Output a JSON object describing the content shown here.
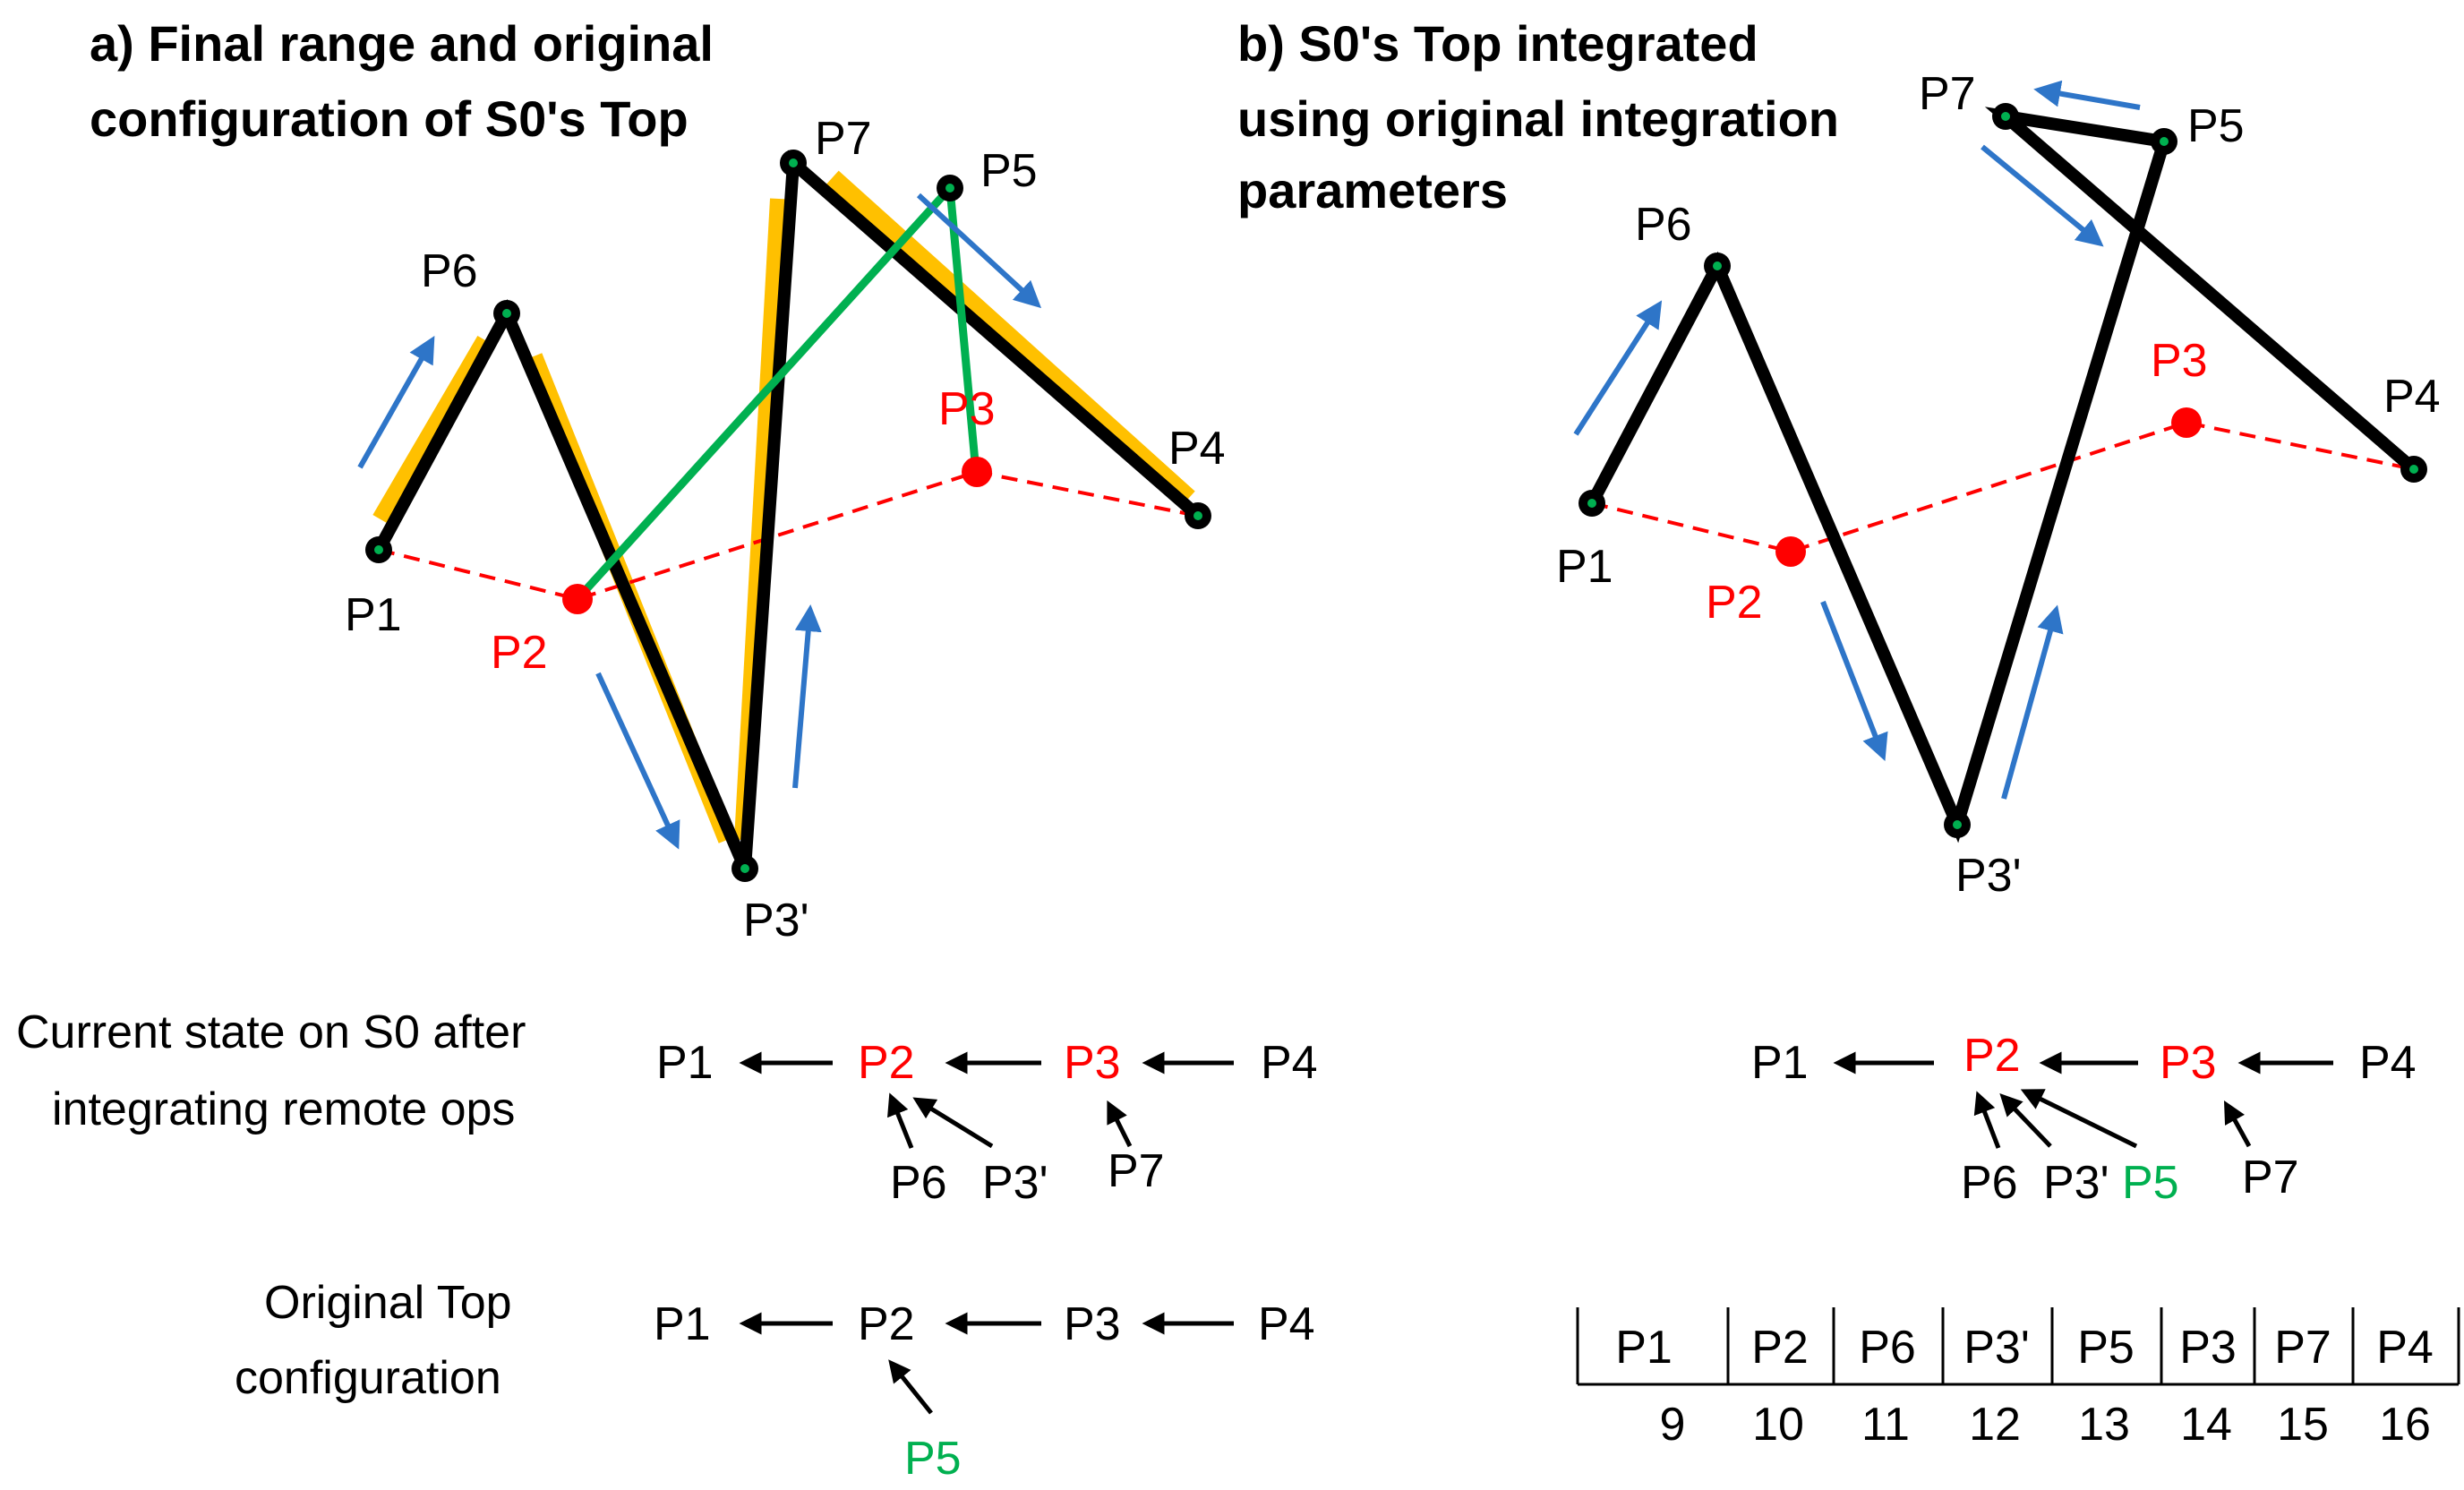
{
  "panel_a": {
    "title_line1": "a) Final range and original",
    "title_line2": "configuration of S0's Top",
    "nodes": {
      "P1": "P1",
      "P2": "P2",
      "P3": "P3",
      "P4": "P4",
      "P5": "P5",
      "P6": "P6",
      "P7": "P7",
      "P3p": "P3'"
    },
    "current_state_caption_line1": "Current state on S0 after",
    "current_state_caption_line2": "integrating remote ops",
    "current_tree": {
      "row": [
        "P1",
        "P2",
        "P3",
        "P4"
      ],
      "children": [
        "P6",
        "P3'",
        "P7"
      ]
    },
    "original_caption_line1": "Original Top",
    "original_caption_line2": "configuration",
    "original_tree": {
      "row": [
        "P1",
        "P2",
        "P3",
        "P4"
      ],
      "children": [
        "P5"
      ]
    }
  },
  "panel_b": {
    "title_line1": "b) S0's Top integrated",
    "title_line2": "using original integration",
    "title_line3": "parameters",
    "nodes": {
      "P1": "P1",
      "P2": "P2",
      "P3": "P3",
      "P4": "P4",
      "P5": "P5",
      "P6": "P6",
      "P7": "P7",
      "P3p": "P3'"
    },
    "tree": {
      "row": [
        "P1",
        "P2",
        "P3",
        "P4"
      ],
      "children": [
        "P6",
        "P3'",
        "P5",
        "P7"
      ]
    },
    "table": {
      "labels": [
        "P1",
        "P2",
        "P6",
        "P3'",
        "P5",
        "P3",
        "P7",
        "P4"
      ],
      "indices": [
        "9",
        "10",
        "11",
        "12",
        "13",
        "14",
        "15",
        "16"
      ]
    }
  },
  "colors": {
    "black": "#000000",
    "red": "#ff0000",
    "green": "#00b050",
    "blue": "#2e75c8",
    "orange": "#ffc000"
  }
}
